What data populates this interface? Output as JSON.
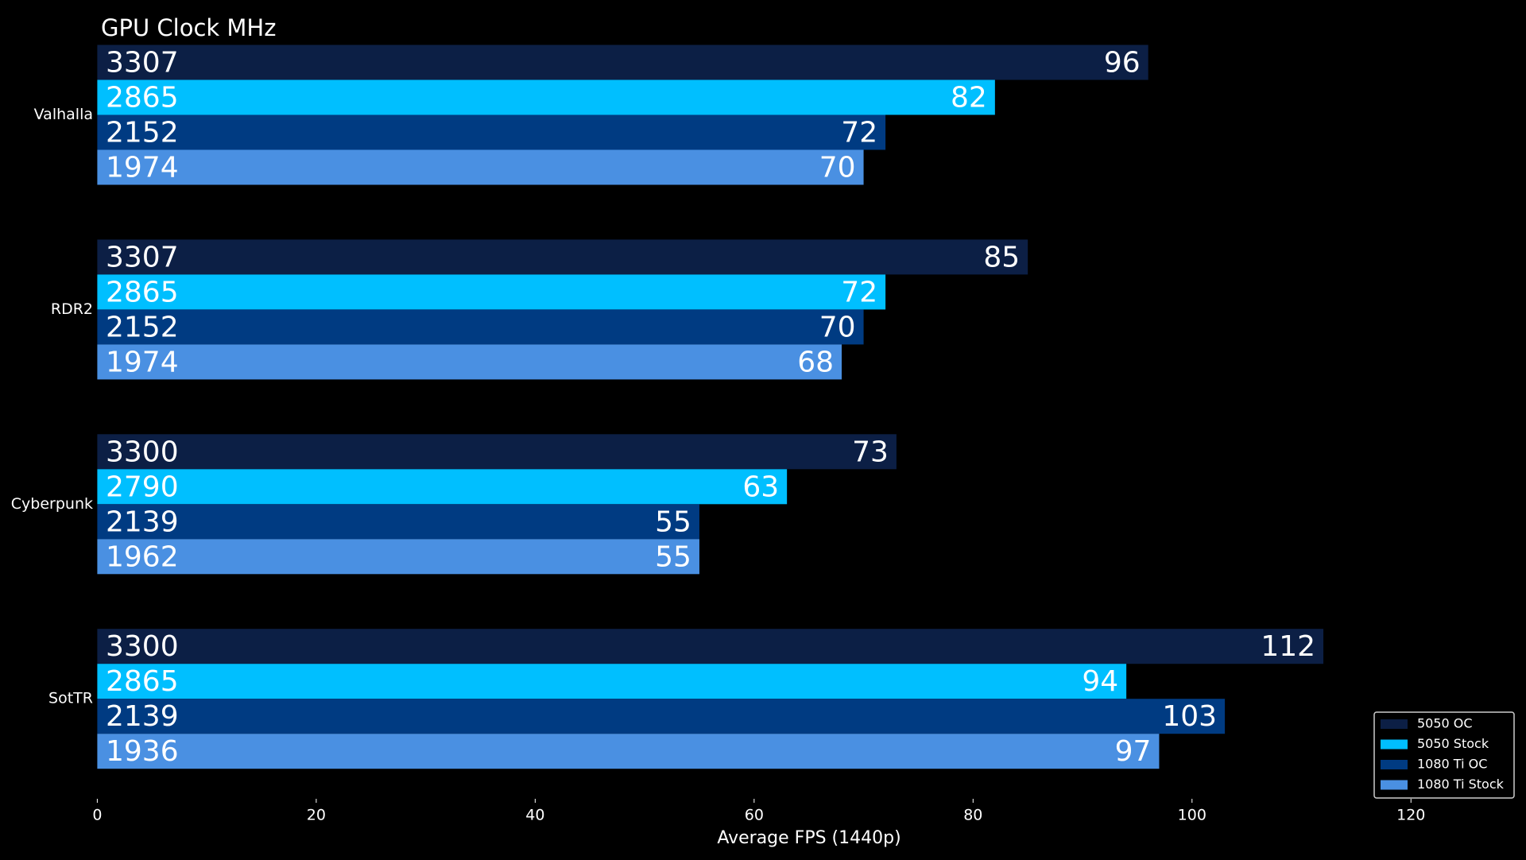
{
  "chart_data": {
    "type": "barh",
    "title": "GPU Clock MHz",
    "xlabel": "Average FPS (1440p)",
    "categories": [
      "Valhalla",
      "RDR2",
      "Cyberpunk",
      "SotTR"
    ],
    "series": [
      {
        "name": "5050 OC",
        "color": "#0c1f45",
        "values": [
          96,
          85,
          73,
          112
        ],
        "clocks": [
          3307,
          3307,
          3300,
          3300
        ]
      },
      {
        "name": "5050 Stock",
        "color": "#00bfff",
        "values": [
          82,
          72,
          63,
          94
        ],
        "clocks": [
          2865,
          2865,
          2790,
          2865
        ]
      },
      {
        "name": "1080 Ti OC",
        "color": "#003b82",
        "values": [
          72,
          70,
          55,
          103
        ],
        "clocks": [
          2152,
          2152,
          2139,
          2139
        ]
      },
      {
        "name": "1080 Ti Stock",
        "color": "#4a90e2",
        "values": [
          70,
          68,
          55,
          97
        ],
        "clocks": [
          1974,
          1974,
          1962,
          1936
        ]
      }
    ],
    "xlim": [
      0,
      130
    ],
    "xticks": [
      0,
      20,
      40,
      60,
      80,
      100,
      120
    ],
    "legend": "lower right"
  }
}
